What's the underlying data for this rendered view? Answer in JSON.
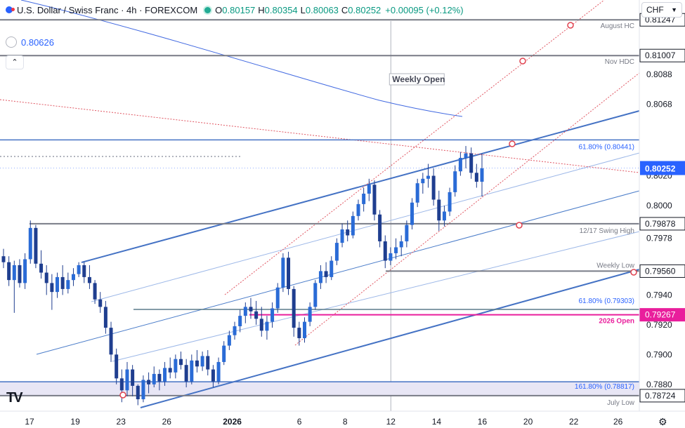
{
  "header": {
    "title": "U.S. Dollar / Swiss Franc · 4h · FOREXCOM",
    "open_label": "O",
    "open": "0.80157",
    "high_label": "H",
    "high": "0.80354",
    "low_label": "L",
    "low": "0.80063",
    "close_label": "C",
    "close": "0.80252",
    "change": "+0.00095 (+0.12%)"
  },
  "indicator": {
    "value": "0.80626"
  },
  "currency": {
    "label": "CHF"
  },
  "chart_data": {
    "type": "candlestick",
    "symbol": "USD/CHF",
    "timeframe": "4h",
    "ylim": [
      0.7862,
      0.8138
    ],
    "xlim": [
      0,
      40
    ],
    "x_ticks": [
      {
        "x": 0.0,
        "label": "17"
      },
      {
        "x": 3.0,
        "label": "19"
      },
      {
        "x": 6.0,
        "label": "23"
      },
      {
        "x": 9.0,
        "label": "26"
      },
      {
        "x": 13.3,
        "label": "2026",
        "bold": true
      },
      {
        "x": 17.7,
        "label": "6"
      },
      {
        "x": 20.7,
        "label": "8"
      },
      {
        "x": 23.7,
        "label": "12"
      },
      {
        "x": 26.7,
        "label": "14"
      },
      {
        "x": 29.7,
        "label": "16"
      },
      {
        "x": 32.7,
        "label": "20"
      },
      {
        "x": 35.7,
        "label": "22"
      },
      {
        "x": 38.6,
        "label": "26"
      }
    ],
    "price_levels": [
      {
        "price": 0.81247,
        "label": "August HC",
        "color": "#787b86"
      },
      {
        "price": 0.81007,
        "label": "Nov HDC",
        "color": "#787b86"
      },
      {
        "price": 0.80441,
        "label": "61.80% (0.80441)",
        "color": "#2962ff"
      },
      {
        "price": 0.79878,
        "label": "12/17 Swing High",
        "color": "#787b86"
      },
      {
        "price": 0.7956,
        "label": "Weekly Low",
        "color": "#787b86"
      },
      {
        "price": 0.79303,
        "label": "61.80% (0.79303)",
        "color": "#5b7c8c"
      },
      {
        "price": 0.79267,
        "label": "2026 Open",
        "color": "#e91e9c"
      },
      {
        "price": 0.78817,
        "label": "161.80% (0.78817)",
        "color": "#2962ff"
      },
      {
        "price": 0.78724,
        "label": "July Low",
        "color": "#787b86"
      }
    ],
    "price_ticks": [
      0.8088,
      0.8068,
      0.802,
      0.8,
      0.7978,
      0.794,
      0.792,
      0.79,
      0.788
    ],
    "last_price": {
      "price": 0.80252,
      "label": "0.80252"
    },
    "annotation": {
      "label": "Weekly Open",
      "x": 23.7
    },
    "candles": [
      [
        0.7966,
        0.7971,
        0.7958,
        0.7962
      ],
      [
        0.7962,
        0.7966,
        0.7946,
        0.795
      ],
      [
        0.795,
        0.7963,
        0.7928,
        0.796
      ],
      [
        0.796,
        0.7964,
        0.7945,
        0.7948
      ],
      [
        0.7948,
        0.7968,
        0.7944,
        0.7964
      ],
      [
        0.7964,
        0.799,
        0.7961,
        0.7985
      ],
      [
        0.7985,
        0.7987,
        0.7958,
        0.7961
      ],
      [
        0.7961,
        0.797,
        0.7951,
        0.7955
      ],
      [
        0.7955,
        0.796,
        0.794,
        0.7948
      ],
      [
        0.7948,
        0.7954,
        0.793,
        0.7942
      ],
      [
        0.7942,
        0.7955,
        0.7938,
        0.7952
      ],
      [
        0.7952,
        0.796,
        0.794,
        0.7944
      ],
      [
        0.7944,
        0.7955,
        0.7941,
        0.795
      ],
      [
        0.795,
        0.7958,
        0.7946,
        0.7954
      ],
      [
        0.7954,
        0.7962,
        0.7952,
        0.796
      ],
      [
        0.796,
        0.7962,
        0.7948,
        0.7952
      ],
      [
        0.7952,
        0.796,
        0.7944,
        0.7948
      ],
      [
        0.7948,
        0.795,
        0.7934,
        0.7937
      ],
      [
        0.7937,
        0.7942,
        0.7928,
        0.7932
      ],
      [
        0.7932,
        0.7936,
        0.7914,
        0.7918
      ],
      [
        0.7918,
        0.7922,
        0.7895,
        0.79
      ],
      [
        0.79,
        0.7904,
        0.788,
        0.7884
      ],
      [
        0.7884,
        0.789,
        0.7868,
        0.7876
      ],
      [
        0.7876,
        0.7895,
        0.7872,
        0.789
      ],
      [
        0.789,
        0.7893,
        0.7872,
        0.7879
      ],
      [
        0.7879,
        0.788,
        0.7866,
        0.787
      ],
      [
        0.787,
        0.7886,
        0.7868,
        0.7883
      ],
      [
        0.7883,
        0.7888,
        0.7874,
        0.788
      ],
      [
        0.788,
        0.7892,
        0.7878,
        0.7887
      ],
      [
        0.7887,
        0.789,
        0.7876,
        0.7882
      ],
      [
        0.7882,
        0.7895,
        0.7879,
        0.7891
      ],
      [
        0.7891,
        0.7898,
        0.7884,
        0.7888
      ],
      [
        0.7888,
        0.79,
        0.7884,
        0.7897
      ],
      [
        0.7897,
        0.7902,
        0.789,
        0.7893
      ],
      [
        0.7893,
        0.7897,
        0.7878,
        0.7882
      ],
      [
        0.7882,
        0.79,
        0.788,
        0.7896
      ],
      [
        0.7896,
        0.7903,
        0.7888,
        0.7892
      ],
      [
        0.7892,
        0.7902,
        0.7889,
        0.7899
      ],
      [
        0.7899,
        0.7903,
        0.7886,
        0.789
      ],
      [
        0.789,
        0.7893,
        0.7878,
        0.7882
      ],
      [
        0.7882,
        0.7898,
        0.788,
        0.7895
      ],
      [
        0.7895,
        0.7909,
        0.7893,
        0.7906
      ],
      [
        0.7906,
        0.7916,
        0.7903,
        0.7913
      ],
      [
        0.7913,
        0.7922,
        0.791,
        0.7919
      ],
      [
        0.7919,
        0.793,
        0.7915,
        0.7926
      ],
      [
        0.7926,
        0.7935,
        0.7921,
        0.7932
      ],
      [
        0.7932,
        0.7938,
        0.7924,
        0.7929
      ],
      [
        0.7929,
        0.7936,
        0.792,
        0.7924
      ],
      [
        0.7924,
        0.7932,
        0.7912,
        0.7916
      ],
      [
        0.7916,
        0.7926,
        0.791,
        0.7922
      ],
      [
        0.7922,
        0.7935,
        0.7918,
        0.7931
      ],
      [
        0.7931,
        0.7948,
        0.7928,
        0.7945
      ],
      [
        0.7945,
        0.7968,
        0.7942,
        0.7965
      ],
      [
        0.7965,
        0.7969,
        0.794,
        0.7944
      ],
      [
        0.7944,
        0.7946,
        0.7912,
        0.7918
      ],
      [
        0.7918,
        0.7922,
        0.7906,
        0.7911
      ],
      [
        0.7911,
        0.7925,
        0.7908,
        0.7922
      ],
      [
        0.7922,
        0.7935,
        0.7919,
        0.7932
      ],
      [
        0.7932,
        0.795,
        0.793,
        0.7948
      ],
      [
        0.7948,
        0.796,
        0.7944,
        0.7956
      ],
      [
        0.7956,
        0.7962,
        0.7948,
        0.7952
      ],
      [
        0.7952,
        0.7966,
        0.795,
        0.7963
      ],
      [
        0.7963,
        0.7978,
        0.796,
        0.7975
      ],
      [
        0.7975,
        0.7988,
        0.7972,
        0.7984
      ],
      [
        0.7984,
        0.799,
        0.7976,
        0.798
      ],
      [
        0.798,
        0.7996,
        0.7978,
        0.7993
      ],
      [
        0.7993,
        0.8004,
        0.799,
        0.8001
      ],
      [
        0.8001,
        0.8012,
        0.7996,
        0.8008
      ],
      [
        0.8008,
        0.8018,
        0.8003,
        0.8014
      ],
      [
        0.8014,
        0.8017,
        0.799,
        0.7994
      ],
      [
        0.7994,
        0.7997,
        0.7972,
        0.7976
      ],
      [
        0.7976,
        0.798,
        0.7958,
        0.7963
      ],
      [
        0.7963,
        0.7972,
        0.796,
        0.7968
      ],
      [
        0.7968,
        0.7978,
        0.7964,
        0.7972
      ],
      [
        0.7972,
        0.798,
        0.7966,
        0.7976
      ],
      [
        0.7976,
        0.799,
        0.7972,
        0.7987
      ],
      [
        0.7987,
        0.8005,
        0.7984,
        0.8002
      ],
      [
        0.8002,
        0.8018,
        0.7999,
        0.8015
      ],
      [
        0.8015,
        0.8022,
        0.8008,
        0.8018
      ],
      [
        0.8018,
        0.8028,
        0.8012,
        0.802
      ],
      [
        0.802,
        0.8025,
        0.8,
        0.8004
      ],
      [
        0.8004,
        0.801,
        0.7983,
        0.799
      ],
      [
        0.799,
        0.8,
        0.7986,
        0.7996
      ],
      [
        0.7996,
        0.8012,
        0.7993,
        0.8009
      ],
      [
        0.8009,
        0.8027,
        0.8006,
        0.8023
      ],
      [
        0.8023,
        0.8036,
        0.802,
        0.8032
      ],
      [
        0.8032,
        0.804,
        0.8025,
        0.8035
      ],
      [
        0.8035,
        0.8039,
        0.8018,
        0.8022
      ],
      [
        0.8022,
        0.8028,
        0.8012,
        0.8016
      ],
      [
        0.8016,
        0.8035,
        0.8006,
        0.8025
      ]
    ]
  }
}
